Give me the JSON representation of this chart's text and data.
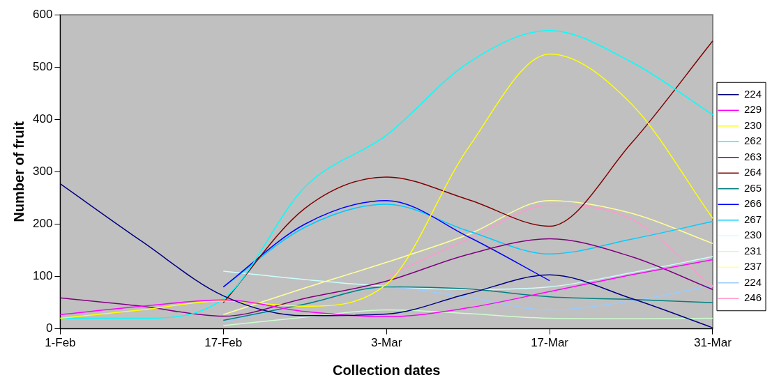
{
  "chart_data": {
    "type": "line",
    "xlabel": "Collection dates",
    "ylabel": "Number of fruit",
    "categories": [
      "1-Feb",
      null,
      "17-Feb",
      null,
      "3-Mar",
      null,
      "17-Mar",
      null,
      "31-Mar"
    ],
    "ylim": [
      0,
      600
    ],
    "yticks": [
      0,
      100,
      200,
      300,
      400,
      500,
      600
    ],
    "grid": false,
    "legend": "right",
    "marker": "none",
    "line_style": "solid",
    "series": [
      {
        "name": "224",
        "color": "#000080",
        "values": [
          277,
          167,
          63,
          25,
          28,
          67,
          103,
          58,
          2
        ]
      },
      {
        "name": "229",
        "color": "#ff00ff",
        "values": [
          27,
          43,
          55,
          33,
          23,
          40,
          71,
          103,
          132
        ]
      },
      {
        "name": "230",
        "color": "#ffff00",
        "values": [
          20,
          36,
          53,
          43,
          85,
          345,
          525,
          430,
          211
        ]
      },
      {
        "name": "262",
        "color": "#00ffff",
        "values": [
          20,
          20,
          57,
          271,
          370,
          508,
          570,
          510,
          409
        ]
      },
      {
        "name": "263",
        "color": "#800080",
        "values": [
          59,
          43,
          24,
          58,
          91,
          142,
          172,
          138,
          75
        ]
      },
      {
        "name": "264",
        "color": "#800000",
        "values": [
          null,
          null,
          50,
          230,
          290,
          247,
          196,
          354,
          550
        ]
      },
      {
        "name": "265",
        "color": "#008080",
        "values": [
          null,
          null,
          16,
          47,
          80,
          76,
          61,
          56,
          50
        ]
      },
      {
        "name": "266",
        "color": "#0000ff",
        "values": [
          null,
          null,
          80,
          200,
          245,
          176,
          92,
          null,
          null
        ]
      },
      {
        "name": "267",
        "color": "#00ccff",
        "values": [
          null,
          null,
          80,
          194,
          238,
          187,
          143,
          171,
          205
        ]
      },
      {
        "name": "230",
        "color": "#ccffff",
        "values": [
          null,
          null,
          110,
          94,
          81,
          75,
          80,
          107,
          138
        ]
      },
      {
        "name": "231",
        "color": "#ccffcc",
        "values": [
          null,
          null,
          6,
          22,
          36,
          29,
          20,
          19,
          20
        ]
      },
      {
        "name": "237",
        "color": "#ffff99",
        "values": [
          null,
          null,
          27,
          78,
          127,
          180,
          245,
          221,
          163
        ]
      },
      {
        "name": "224",
        "color": "#99ccff",
        "values": [
          null,
          null,
          13,
          47,
          79,
          60,
          36,
          53,
          83
        ]
      },
      {
        "name": "246",
        "color": "#ff99cc",
        "values": [
          null,
          null,
          null,
          null,
          100,
          171,
          236,
          210,
          80
        ]
      }
    ]
  }
}
